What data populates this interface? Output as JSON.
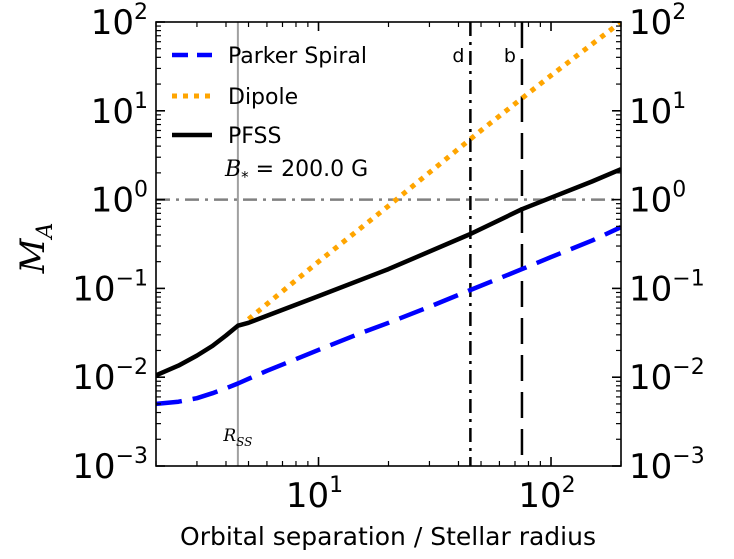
{
  "chart_data": {
    "type": "line",
    "title": "",
    "xlabel": "Orbital separation / Stellar radius",
    "ylabel": {
      "main": "M",
      "sub": "A"
    },
    "xscale": "log",
    "yscale": "log",
    "xlim": [
      2,
      200
    ],
    "ylim": [
      0.001,
      100
    ],
    "x_ticks": [
      {
        "value": 10,
        "base": "10",
        "exp": "1"
      },
      {
        "value": 100,
        "base": "10",
        "exp": "2"
      }
    ],
    "y_ticks": [
      {
        "value": 0.001,
        "base": "10",
        "exp": "−3"
      },
      {
        "value": 0.01,
        "base": "10",
        "exp": "−2"
      },
      {
        "value": 0.1,
        "base": "10",
        "exp": "−1"
      },
      {
        "value": 1,
        "base": "10",
        "exp": "0"
      },
      {
        "value": 10,
        "base": "10",
        "exp": "1"
      },
      {
        "value": 100,
        "base": "10",
        "exp": "2"
      }
    ],
    "legend_position": "top-left",
    "series": [
      {
        "name": "Parker Spiral",
        "color": "#0000ff",
        "style": "dashed",
        "x": [
          2,
          2.5,
          3,
          3.5,
          4,
          4.5,
          5,
          6,
          8,
          10,
          15,
          20,
          30,
          45,
          75,
          100,
          150,
          200
        ],
        "y": [
          0.005,
          0.0053,
          0.0058,
          0.0066,
          0.0075,
          0.0085,
          0.0096,
          0.0118,
          0.016,
          0.0203,
          0.031,
          0.041,
          0.062,
          0.096,
          0.165,
          0.225,
          0.345,
          0.49
        ]
      },
      {
        "name": "Dipole",
        "color": "#ffa500",
        "style": "dotted",
        "x": [
          5,
          10,
          20,
          50,
          100,
          200
        ],
        "y": [
          0.045,
          0.2,
          0.85,
          6.0,
          25,
          100
        ]
      },
      {
        "name": "PFSS",
        "color": "#000000",
        "style": "solid",
        "x": [
          2,
          2.5,
          3,
          3.5,
          4,
          4.5,
          5,
          10,
          20,
          45,
          75,
          100,
          150,
          200
        ],
        "y": [
          0.0105,
          0.0135,
          0.0175,
          0.0225,
          0.0295,
          0.038,
          0.041,
          0.082,
          0.165,
          0.41,
          0.78,
          1.05,
          1.6,
          2.2
        ]
      }
    ],
    "reference_lines": [
      {
        "orientation": "horizontal",
        "value": 1,
        "color": "#808080",
        "style": "dashdot",
        "label": ""
      },
      {
        "orientation": "vertical",
        "value": 4.5,
        "color": "#a0a0a0",
        "style": "solid",
        "label": "R",
        "label_sub": "SS"
      },
      {
        "orientation": "vertical",
        "value": 45,
        "color": "#000000",
        "style": "dashdot",
        "label": "d"
      },
      {
        "orientation": "vertical",
        "value": 75,
        "color": "#000000",
        "style": "dashed",
        "label": "b"
      }
    ],
    "annotation": {
      "symbol": "B",
      "sub": "*",
      "text": " = 200.0 G"
    }
  }
}
